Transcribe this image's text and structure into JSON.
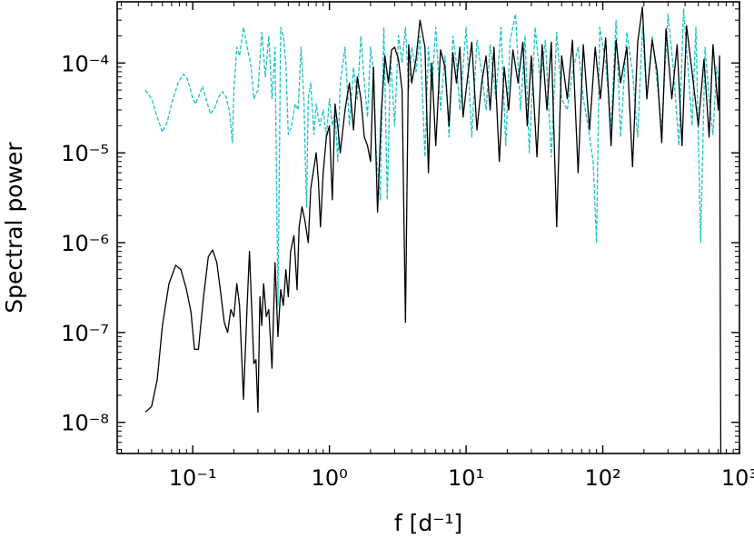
{
  "chart_data": {
    "type": "line",
    "title": "",
    "xlabel": "f [d⁻¹]",
    "ylabel": "Spectral power",
    "x_scale": "log",
    "y_scale": "log",
    "xlim": [
      0.028,
      1000
    ],
    "ylim": [
      4.5e-09,
      0.00048
    ],
    "x_ticks": [
      0.1,
      1,
      10,
      100,
      1000
    ],
    "x_tick_labels": [
      "10⁻¹",
      "10⁰",
      "10¹",
      "10²",
      "10³"
    ],
    "y_ticks": [
      1e-08,
      1e-07,
      1e-06,
      1e-05,
      0.0001
    ],
    "y_tick_labels": [
      "10⁻⁸",
      "10⁻⁷",
      "10⁻⁶",
      "10⁻⁵",
      "10⁻⁴"
    ],
    "grid": false,
    "legend": "none",
    "series": [
      {
        "color": "#000000",
        "style": "solid",
        "x": [
          0.045,
          0.05,
          0.055,
          0.06,
          0.067,
          0.075,
          0.082,
          0.09,
          0.097,
          0.103,
          0.11,
          0.12,
          0.13,
          0.14,
          0.15,
          0.16,
          0.17,
          0.18,
          0.19,
          0.2,
          0.21,
          0.22,
          0.235,
          0.25,
          0.26,
          0.28,
          0.29,
          0.3,
          0.31,
          0.32,
          0.33,
          0.345,
          0.36,
          0.38,
          0.4,
          0.42,
          0.44,
          0.46,
          0.48,
          0.5,
          0.52,
          0.55,
          0.58,
          0.6,
          0.63,
          0.66,
          0.7,
          0.73,
          0.76,
          0.8,
          0.83,
          0.86,
          0.9,
          0.95,
          1.0,
          1.05,
          1.1,
          1.15,
          1.2,
          1.3,
          1.4,
          1.5,
          1.6,
          1.7,
          1.8,
          1.9,
          2.0,
          2.1,
          2.25,
          2.4,
          2.55,
          2.7,
          2.85,
          3.0,
          3.2,
          3.4,
          3.6,
          3.8,
          4.0,
          4.3,
          4.6,
          5.0,
          5.3,
          5.6,
          6.0,
          6.5,
          7.0,
          7.5,
          8.0,
          8.5,
          9.0,
          9.5,
          10.0,
          11.0,
          12.0,
          13.0,
          14.0,
          15.0,
          16.0,
          17.5,
          19.0,
          20.5,
          22.0,
          24.0,
          26.0,
          28.0,
          30.0,
          33.0,
          36.0,
          39.0,
          42.0,
          46.0,
          50.0,
          55.0,
          60.0,
          66.0,
          72.0,
          80.0,
          88.0,
          96.0,
          105.0,
          115.0,
          125.0,
          135.0,
          150.0,
          165.0,
          180.0,
          195.0,
          210.0,
          230.0,
          250.0,
          270.0,
          290.0,
          320.0,
          350.0,
          380.0,
          410.0,
          450.0,
          500.0,
          550.0,
          600.0,
          640.0,
          680.0,
          700.0,
          715.0,
          730.0
        ],
        "y": [
          1.3e-08,
          1.5e-08,
          3e-08,
          1.2e-07,
          3.5e-07,
          5.6e-07,
          5e-07,
          3e-07,
          1.7e-07,
          6.5e-08,
          6.5e-08,
          2.5e-07,
          7e-07,
          8.3e-07,
          6e-07,
          2.8e-07,
          1.3e-07,
          1e-07,
          1.8e-07,
          1.5e-07,
          3.5e-07,
          2e-07,
          1.8e-08,
          2e-07,
          8e-07,
          4.5e-08,
          5e-08,
          1.3e-08,
          2.5e-07,
          1.2e-07,
          3.5e-07,
          1.5e-07,
          1.8e-07,
          4e-08,
          6e-07,
          9e-08,
          3e-07,
          2e-07,
          5e-07,
          2.5e-07,
          8e-07,
          1.2e-06,
          3e-07,
          1.5e-06,
          2.5e-06,
          1.8e-06,
          1e-06,
          4e-06,
          6e-06,
          1e-05,
          5e-06,
          1.5e-06,
          6e-06,
          1.5e-05,
          2e-05,
          3e-06,
          3.5e-05,
          2e-05,
          1e-05,
          3e-05,
          6e-05,
          1.8e-05,
          7e-05,
          4e-05,
          1.5e-05,
          1.2e-05,
          8e-06,
          9e-05,
          2.2e-06,
          3e-05,
          0.00012,
          6e-05,
          0.00014,
          0.00015,
          0.00011,
          5e-05,
          1.3e-07,
          0.00016,
          6e-05,
          0.00011,
          0.0003,
          0.00015,
          6e-06,
          0.0001,
          1.2e-05,
          0.00014,
          9e-05,
          2e-05,
          0.00013,
          6e-05,
          0.00015,
          2.5e-05,
          5e-05,
          0.00017,
          1.8e-05,
          6e-05,
          0.00012,
          3e-05,
          0.00015,
          8e-06,
          9e-05,
          3e-05,
          0.00014,
          6e-05,
          0.00017,
          2e-05,
          0.00012,
          9e-06,
          0.00016,
          3e-05,
          0.00017,
          1.5e-06,
          0.00012,
          4e-05,
          0.00018,
          6e-06,
          0.00016,
          1.8e-05,
          0.00015,
          4e-05,
          0.00019,
          1.2e-05,
          0.00018,
          6e-05,
          0.00015,
          7e-06,
          0.00017,
          0.00042,
          4e-05,
          0.00018,
          8e-05,
          1.3e-05,
          0.00024,
          4e-05,
          0.00016,
          1.2e-05,
          0.00026,
          8e-05,
          2e-05,
          0.00011,
          1.5e-05,
          0.00016,
          5e-05,
          3e-05,
          0.00012,
          4.5e-09
        ]
      },
      {
        "color": "#1cc3c3",
        "style": "dashed",
        "x": [
          0.045,
          0.05,
          0.055,
          0.06,
          0.065,
          0.07,
          0.078,
          0.085,
          0.09,
          0.095,
          0.1,
          0.105,
          0.11,
          0.118,
          0.125,
          0.135,
          0.145,
          0.155,
          0.165,
          0.175,
          0.185,
          0.195,
          0.2,
          0.21,
          0.22,
          0.235,
          0.25,
          0.265,
          0.28,
          0.3,
          0.32,
          0.34,
          0.36,
          0.38,
          0.4,
          0.42,
          0.44,
          0.46,
          0.48,
          0.5,
          0.53,
          0.56,
          0.59,
          0.62,
          0.65,
          0.68,
          0.7,
          0.73,
          0.77,
          0.8,
          0.85,
          0.9,
          0.95,
          1.0,
          1.05,
          1.1,
          1.15,
          1.2,
          1.3,
          1.4,
          1.5,
          1.6,
          1.7,
          1.8,
          1.9,
          2.0,
          2.1,
          2.2,
          2.35,
          2.5,
          2.65,
          2.8,
          3.0,
          3.2,
          3.4,
          3.6,
          3.8,
          4.0,
          4.3,
          4.6,
          5.0,
          5.3,
          5.6,
          6.0,
          6.5,
          7.0,
          7.5,
          8.0,
          8.5,
          9.0,
          10.0,
          11.0,
          12.0,
          13.0,
          14.0,
          15.0,
          16.5,
          18.0,
          19.5,
          21.0,
          23.0,
          25.0,
          27.0,
          29.0,
          32.0,
          35.0,
          38.0,
          42.0,
          46.0,
          50.0,
          55.0,
          60.0,
          66.0,
          72.0,
          78.0,
          85.0,
          90.0,
          95.0,
          105.0,
          115.0,
          125.0,
          135.0,
          150.0,
          165.0,
          180.0,
          195.0,
          210.0,
          230.0,
          250.0,
          270.0,
          300.0,
          330.0,
          360.0,
          390.0,
          420.0,
          450.0,
          480.0,
          520.0,
          560.0,
          600.0,
          640.0,
          680.0,
          710.0
        ],
        "y": [
          5e-05,
          4e-05,
          2.5e-05,
          1.7e-05,
          2.2e-05,
          3.5e-05,
          6e-05,
          7.5e-05,
          7e-05,
          5.5e-05,
          4e-05,
          3.5e-05,
          4.2e-05,
          5.5e-05,
          4e-05,
          2.7e-05,
          3.2e-05,
          4.2e-05,
          4.8e-05,
          4.2e-05,
          3e-05,
          1.3e-05,
          5e-05,
          0.00015,
          0.00012,
          0.00025,
          0.00015,
          0.0001,
          4e-05,
          5e-05,
          0.00022,
          7e-05,
          0.0002,
          4e-05,
          0.00015,
          2e-07,
          0.00025,
          0.0002,
          0.0001,
          1.6e-05,
          2e-05,
          3.5e-05,
          3e-05,
          0.00015,
          4e-05,
          2.5e-06,
          4e-05,
          6e-05,
          1.6e-05,
          3.5e-05,
          2e-05,
          3e-05,
          1.5e-05,
          4e-05,
          2e-05,
          3e-05,
          8e-06,
          6e-05,
          0.00015,
          2e-05,
          9e-05,
          4e-05,
          0.0002,
          6e-05,
          2.5e-05,
          0.00015,
          8e-05,
          1e-05,
          3e-06,
          0.00025,
          3e-06,
          0.00012,
          2e-05,
          0.0002,
          0.0001,
          0.00025,
          5e-05,
          0.00015,
          8e-05,
          0.0002,
          9e-06,
          0.00015,
          5e-05,
          0.00025,
          3e-05,
          0.00012,
          1.5e-05,
          0.0002,
          0.0001,
          3e-05,
          0.00025,
          1.5e-05,
          0.00018,
          8e-05,
          3e-05,
          0.00016,
          4e-05,
          0.00025,
          1.2e-05,
          0.00018,
          0.00035,
          3e-05,
          0.0002,
          1e-05,
          0.00025,
          6e-05,
          0.00018,
          9e-06,
          0.00022,
          4e-05,
          3e-05,
          8e-05,
          0.00015,
          4e-05,
          2e-05,
          8e-06,
          1e-06,
          0.00025,
          0.0001,
          2e-05,
          0.0003,
          1.5e-05,
          0.00022,
          8e-05,
          1.5e-05,
          0.00025,
          4e-05,
          0.0002,
          6e-05,
          1.8e-05,
          0.00035,
          8e-05,
          1.2e-05,
          0.0004,
          9e-05,
          2e-05,
          0.00025,
          1e-06,
          0.00015,
          4e-05,
          1.6e-05,
          9e-05,
          5e-05
        ]
      }
    ]
  }
}
